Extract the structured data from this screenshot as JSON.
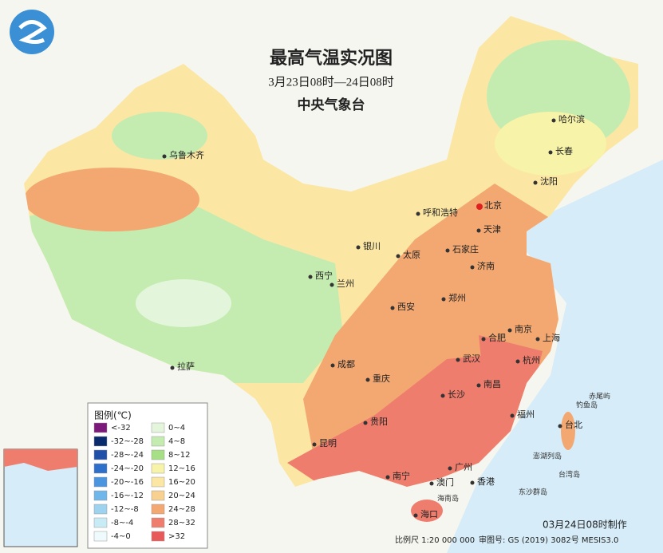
{
  "header": {
    "title": "最高气温实况图",
    "subtitle": "3月23日08时—24日08时",
    "agency": "中央气象台"
  },
  "legend": {
    "title": "图例(℃)",
    "items": [
      {
        "label": "<-32",
        "color": "#7b1a7b"
      },
      {
        "label": "-32~-28",
        "color": "#0a2a6e"
      },
      {
        "label": "-28~-24",
        "color": "#1f4fa8"
      },
      {
        "label": "-24~-20",
        "color": "#2e6fcc"
      },
      {
        "label": "-20~-16",
        "color": "#4a94e0"
      },
      {
        "label": "-16~-12",
        "color": "#6fb6ea"
      },
      {
        "label": "-12~-8",
        "color": "#9dd3ee"
      },
      {
        "label": "-8~-4",
        "color": "#c8ecf5"
      },
      {
        "label": "-4~0",
        "color": "#eefafb"
      },
      {
        "label": "0~4",
        "color": "#e3f6dc"
      },
      {
        "label": "4~8",
        "color": "#c5ecb0"
      },
      {
        "label": "8~12",
        "color": "#a6df85"
      },
      {
        "label": "12~16",
        "color": "#f7f3a8"
      },
      {
        "label": "16~20",
        "color": "#fbe7a3"
      },
      {
        "label": "20~24",
        "color": "#f8d08f"
      },
      {
        "label": "24~28",
        "color": "#f3a872"
      },
      {
        "label": "28~32",
        "color": "#ee7d6d"
      },
      {
        "label": ">32",
        "color": "#e85a5a"
      }
    ]
  },
  "cities": [
    "乌鲁木齐",
    "哈尔滨",
    "长春",
    "沈阳",
    "北京",
    "天津",
    "呼和浩特",
    "银川",
    "太原",
    "石家庄",
    "济南",
    "西宁",
    "兰州",
    "西安",
    "郑州",
    "南京",
    "上海",
    "合肥",
    "武汉",
    "杭州",
    "拉萨",
    "成都",
    "重庆",
    "长沙",
    "南昌",
    "福州",
    "台北",
    "贵阳",
    "昆明",
    "南宁",
    "广州",
    "澳门",
    "香港",
    "海口"
  ],
  "islands": [
    "赤尾屿",
    "钓鱼岛",
    "澎湖列岛",
    "台湾岛",
    "东沙群岛",
    "海南岛"
  ],
  "footer": {
    "scale": "比例尺 1:20 000 000",
    "approval": "审图号: GS (2019) 3082号 MESIS3.0",
    "issued": "03月24日08时制作"
  }
}
